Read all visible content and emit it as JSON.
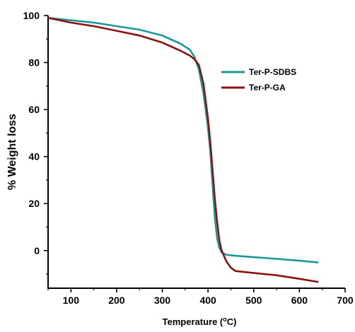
{
  "chart_data": {
    "type": "line",
    "title": "",
    "xlabel": "Temperature (",
    "xlabel_sup": "o",
    "xlabel_end": "C)",
    "ylabel": "% Weight loss",
    "xlim": [
      50,
      700
    ],
    "ylim": [
      -16,
      100
    ],
    "x_ticks": [
      100,
      200,
      300,
      400,
      500,
      600,
      700
    ],
    "y_ticks": [
      0,
      20,
      40,
      60,
      80,
      100
    ],
    "x_tick_labels": [
      "100",
      "200",
      "300",
      "400",
      "500",
      "600",
      "700"
    ],
    "y_tick_labels": [
      "0",
      "20",
      "40",
      "60",
      "80",
      "100"
    ],
    "grid": false,
    "legend_position": "top-right",
    "series": [
      {
        "name": "Ter-P-SDBS",
        "color": "#1a9a96",
        "x": [
          50,
          100,
          150,
          200,
          250,
          300,
          340,
          360,
          370,
          380,
          390,
          400,
          405,
          410,
          415,
          420,
          425,
          430,
          440,
          460,
          500,
          550,
          600,
          640
        ],
        "y": [
          99,
          98,
          97,
          95.5,
          94,
          91.5,
          88,
          85.5,
          82.5,
          77,
          67,
          52,
          42,
          28,
          14,
          5,
          1,
          -0.8,
          -1.8,
          -2.2,
          -2.8,
          -3.5,
          -4.3,
          -5
        ]
      },
      {
        "name": "Ter-P-GA",
        "color": "#8b1212",
        "x": [
          50,
          100,
          150,
          200,
          250,
          300,
          340,
          360,
          370,
          380,
          390,
          400,
          405,
          410,
          415,
          420,
          425,
          430,
          440,
          450,
          460,
          500,
          550,
          600,
          640
        ],
        "y": [
          99,
          97,
          95.5,
          93.5,
          91.5,
          88.5,
          85,
          83,
          81.5,
          79,
          71,
          56,
          46,
          34,
          22,
          12,
          4,
          0,
          -4.5,
          -7.3,
          -8.7,
          -9.5,
          -10.5,
          -12,
          -13.3
        ]
      }
    ]
  }
}
